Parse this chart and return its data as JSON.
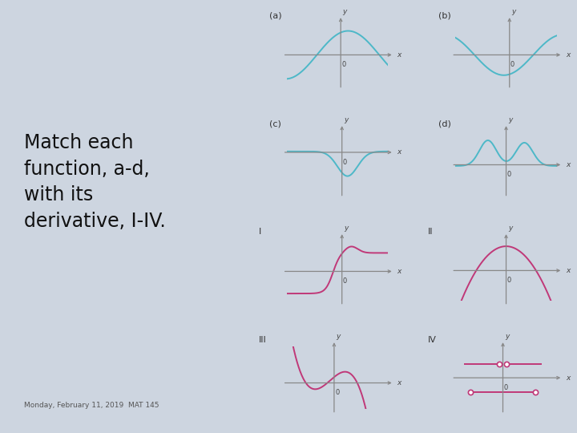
{
  "bg_color": "#cdd5e0",
  "left_bg": "#c5cedd",
  "right_bg": "#cdd5e0",
  "cyan": "#4db8c8",
  "magenta": "#c03878",
  "axis_gray": "#888888",
  "label_gray": "#444444",
  "title_lines": [
    "Match each",
    "function, a-d,",
    "with its",
    "derivative, I-IV."
  ],
  "date_text": "Monday, February 11, 2019  MAT 145",
  "title_fontsize": 17,
  "date_fontsize": 6.5
}
